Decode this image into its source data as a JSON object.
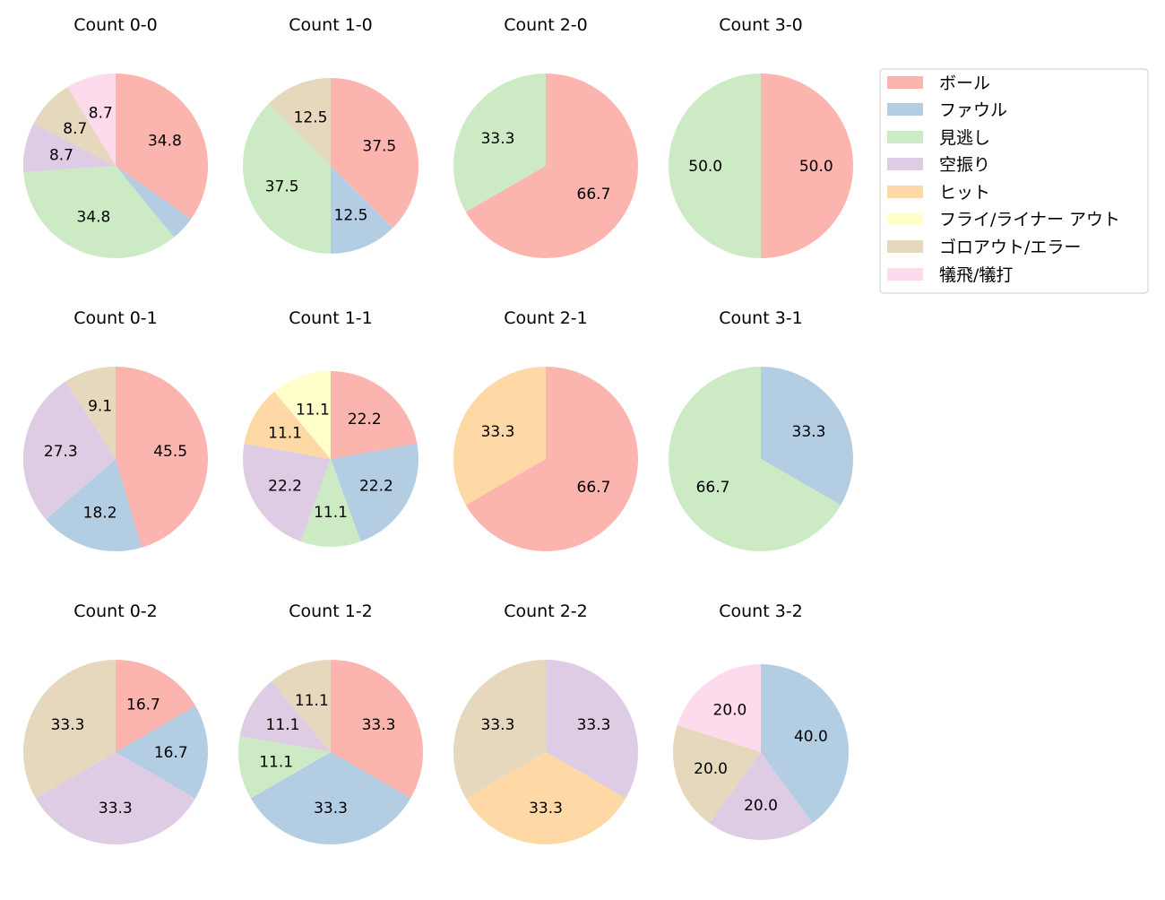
{
  "chart_data": {
    "type": "pie",
    "legend": {
      "position": "top-right",
      "entries": [
        "ボール",
        "ファウル",
        "見逃し",
        "空振り",
        "ヒット",
        "フライ/ライナー アウト",
        "ゴロアウト/エラー",
        "犠飛/犠打"
      ],
      "colors": [
        "#fbb4ae",
        "#b3cde3",
        "#ccebc5",
        "#decbe4",
        "#fed9a6",
        "#ffffcc",
        "#e5d8bd",
        "#fddaec"
      ]
    },
    "charts": [
      {
        "title": "Count 0-0",
        "values": [
          34.8,
          4.3,
          34.8,
          8.7,
          0,
          0,
          8.7,
          8.7
        ]
      },
      {
        "title": "Count 1-0",
        "values": [
          37.5,
          12.5,
          37.5,
          0,
          0,
          0,
          12.5,
          0
        ]
      },
      {
        "title": "Count 2-0",
        "values": [
          66.7,
          0,
          33.3,
          0,
          0,
          0,
          0,
          0
        ]
      },
      {
        "title": "Count 3-0",
        "values": [
          50.0,
          0,
          50.0,
          0,
          0,
          0,
          0,
          0
        ]
      },
      {
        "title": "Count 0-1",
        "values": [
          45.5,
          18.2,
          0,
          27.3,
          0,
          0,
          9.1,
          0
        ]
      },
      {
        "title": "Count 1-1",
        "values": [
          22.2,
          22.2,
          11.1,
          22.2,
          11.1,
          11.1,
          0,
          0
        ]
      },
      {
        "title": "Count 2-1",
        "values": [
          66.7,
          0,
          0,
          0,
          33.3,
          0,
          0,
          0
        ]
      },
      {
        "title": "Count 3-1",
        "values": [
          0,
          33.3,
          66.7,
          0,
          0,
          0,
          0,
          0
        ]
      },
      {
        "title": "Count 0-2",
        "values": [
          16.7,
          16.7,
          0,
          33.3,
          0,
          0,
          33.3,
          0
        ]
      },
      {
        "title": "Count 1-2",
        "values": [
          33.3,
          33.3,
          11.1,
          11.1,
          0,
          0,
          11.1,
          0
        ]
      },
      {
        "title": "Count 2-2",
        "values": [
          0,
          0,
          0,
          33.3,
          33.3,
          0,
          33.3,
          0
        ]
      },
      {
        "title": "Count 3-2",
        "values": [
          0,
          40.0,
          0,
          20.0,
          0,
          0,
          20.0,
          20.0
        ]
      }
    ]
  }
}
